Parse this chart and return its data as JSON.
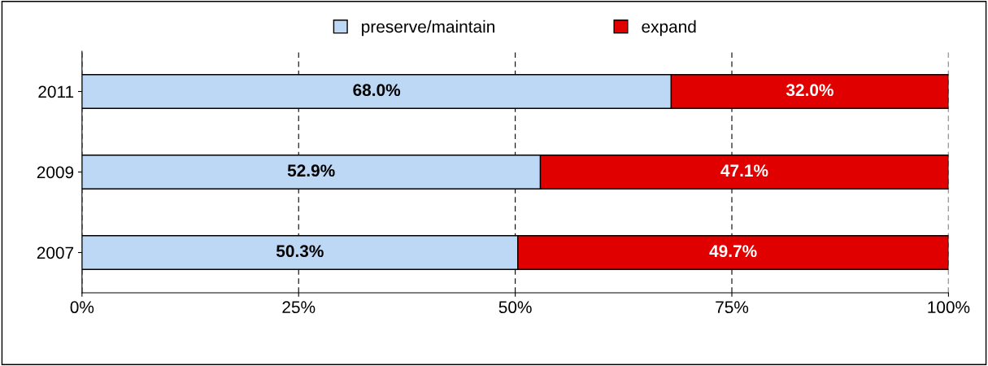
{
  "chart_data": {
    "type": "bar",
    "orientation": "horizontal",
    "stacked": true,
    "categories": [
      "2011",
      "2009",
      "2007"
    ],
    "series": [
      {
        "name": "preserve/maintain",
        "color": "#bcd8f5",
        "values": [
          68.0,
          52.9,
          50.3
        ],
        "value_labels": [
          "68.0%",
          "52.9%",
          "50.3%"
        ]
      },
      {
        "name": "expand",
        "color": "#e00000",
        "values": [
          32.0,
          47.1,
          49.7
        ],
        "value_labels": [
          "32.0%",
          "47.1%",
          "49.7%"
        ]
      }
    ],
    "xlim": [
      0,
      100
    ],
    "xticks": [
      {
        "value": 0,
        "label": "0%"
      },
      {
        "value": 25,
        "label": "25%"
      },
      {
        "value": 50,
        "label": "50%"
      },
      {
        "value": 75,
        "label": "75%"
      },
      {
        "value": 100,
        "label": "100%"
      }
    ],
    "grid": "x",
    "legend": "top"
  }
}
